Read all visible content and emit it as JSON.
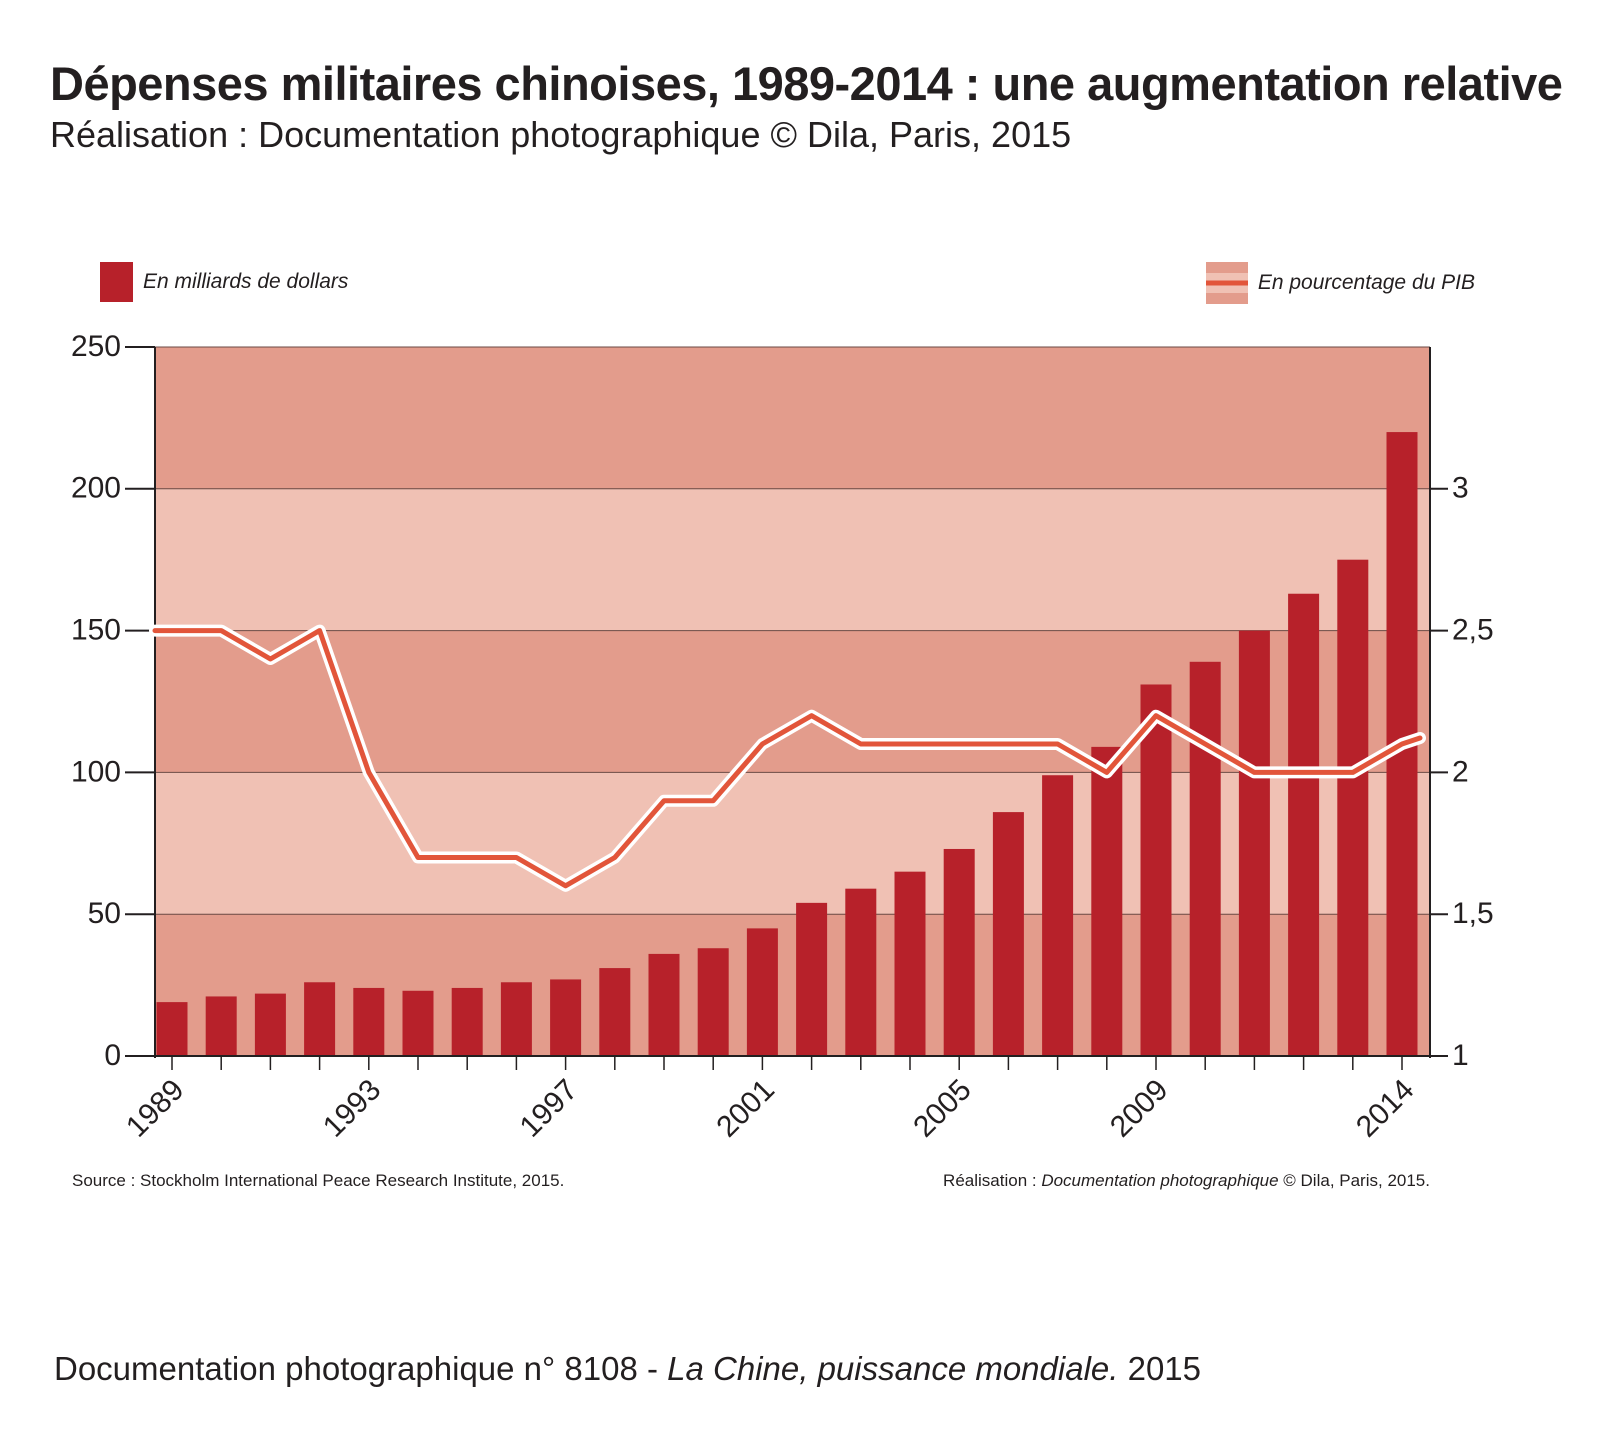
{
  "header": {
    "title": "Dépenses militaires chinoises, 1989-2014 : une augmentation relative",
    "subtitle": "Réalisation : Documentation photographique © Dila, Paris, 2015"
  },
  "legend": {
    "bars_label": "En milliards de dollars",
    "line_label": "En pourcentage du PIB"
  },
  "colors": {
    "bar": "#b7212a",
    "band_dark": "#e39c8c",
    "band_light": "#f0c1b4",
    "line": "#e2553a",
    "line_halo": "#ffffff",
    "axis": "#231f20"
  },
  "chart_data": {
    "type": "bar",
    "x": [
      1989,
      1990,
      1991,
      1992,
      1993,
      1994,
      1995,
      1996,
      1997,
      1998,
      1999,
      2000,
      2001,
      2002,
      2003,
      2004,
      2005,
      2006,
      2007,
      2008,
      2009,
      2010,
      2011,
      2012,
      2013,
      2014
    ],
    "x_tick_labels": [
      "1989",
      "1993",
      "1997",
      "2001",
      "2005",
      "2009",
      "2014"
    ],
    "series": [
      {
        "name": "En milliards de dollars",
        "type": "bar",
        "axis": "left",
        "values": [
          19,
          21,
          22,
          26,
          24,
          23,
          24,
          26,
          27,
          31,
          36,
          38,
          45,
          54,
          59,
          65,
          73,
          86,
          99,
          109,
          131,
          139,
          150,
          163,
          175,
          220
        ]
      },
      {
        "name": "En pourcentage du PIB",
        "type": "line",
        "axis": "right",
        "values": [
          2.5,
          2.5,
          2.4,
          2.5,
          2.0,
          1.7,
          1.7,
          1.7,
          1.6,
          1.7,
          1.9,
          1.9,
          2.1,
          2.2,
          2.1,
          2.1,
          2.1,
          2.1,
          2.1,
          2.0,
          2.2,
          2.1,
          2.0,
          2.0,
          2.0,
          2.1
        ]
      }
    ],
    "y_left": {
      "ylim": [
        0,
        250
      ],
      "ticks": [
        "0",
        "50",
        "100",
        "150",
        "200",
        "250"
      ]
    },
    "y_right": {
      "ylim": [
        1,
        3.5
      ],
      "ticks": [
        "1",
        "1,5",
        "2",
        "2,5",
        "3"
      ]
    },
    "grid": true,
    "legend_position": "top"
  },
  "footer": {
    "source": "Source : Stockholm International Peace Research Institute, 2015.",
    "credit_prefix": "Réalisation : ",
    "credit_italic": "Documentation photographique",
    "credit_suffix": " © Dila, Paris, 2015.",
    "publication_prefix": "Documentation photographique n° 8108 - ",
    "publication_italic": "La Chine, puissance mondiale.",
    "publication_suffix": " 2015"
  }
}
